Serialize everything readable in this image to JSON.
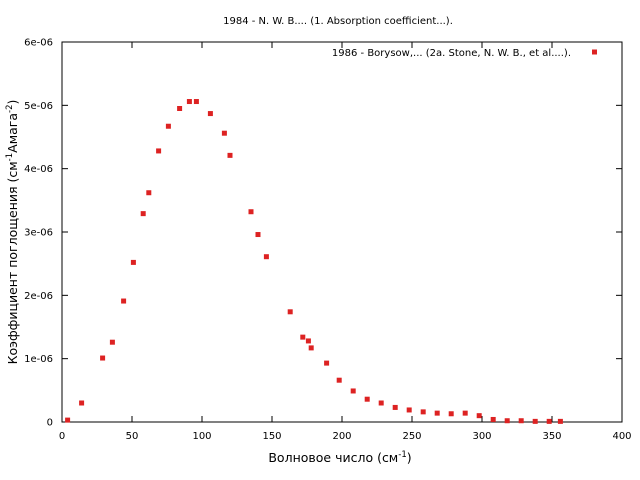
{
  "chart_data": {
    "type": "scatter",
    "title": "1984 - N. W. B.... (1. Absorption coefficient...).",
    "xlabel": "Волновое число (см",
    "xlabel_sup": "-1",
    "xlabel_tail": ")",
    "ylabel": "Коэффициент поглощения (см",
    "ylabel_sup1": "-1",
    "ylabel_mid": "Амага",
    "ylabel_sup2": "-2",
    "ylabel_tail": ")",
    "xlim": [
      0,
      400
    ],
    "ylim": [
      0,
      6e-06
    ],
    "x_ticks": [
      0,
      50,
      100,
      150,
      200,
      250,
      300,
      350,
      400
    ],
    "x_tick_labels": [
      "0",
      "50",
      "100",
      "150",
      "200",
      "250",
      "300",
      "350",
      "400"
    ],
    "y_ticks": [
      0,
      1e-06,
      2e-06,
      3e-06,
      4e-06,
      5e-06,
      6e-06
    ],
    "y_tick_labels": [
      "0",
      "1e-06",
      "2e-06",
      "3e-06",
      "4e-06",
      "5e-06",
      "6e-06"
    ],
    "grid": false,
    "legend_position": "top-right",
    "series": [
      {
        "name": "1986 - Borysow,... (2a. Stone, N. W. B., et al....).",
        "color": "#dd2222",
        "x": [
          4,
          14,
          29,
          36,
          44,
          51,
          58,
          62,
          69,
          76,
          84,
          91,
          96,
          106,
          116,
          120,
          135,
          140,
          146,
          163,
          172,
          176,
          178,
          189,
          198,
          208,
          218,
          228,
          238,
          248,
          258,
          268,
          278,
          288,
          298,
          308,
          318,
          328,
          338,
          348,
          356
        ],
        "y": [
          3e-08,
          3e-07,
          1.01e-06,
          1.26e-06,
          1.91e-06,
          2.52e-06,
          3.29e-06,
          3.62e-06,
          4.28e-06,
          4.67e-06,
          4.95e-06,
          5.06e-06,
          5.06e-06,
          4.87e-06,
          4.56e-06,
          4.21e-06,
          3.32e-06,
          2.96e-06,
          2.61e-06,
          1.74e-06,
          1.34e-06,
          1.28e-06,
          1.17e-06,
          9.3e-07,
          6.6e-07,
          4.9e-07,
          3.6e-07,
          3e-07,
          2.3e-07,
          1.9e-07,
          1.6e-07,
          1.4e-07,
          1.3e-07,
          1.4e-07,
          1e-07,
          4e-08,
          2e-08,
          2e-08,
          1e-08,
          1e-08,
          1e-08
        ]
      }
    ]
  }
}
